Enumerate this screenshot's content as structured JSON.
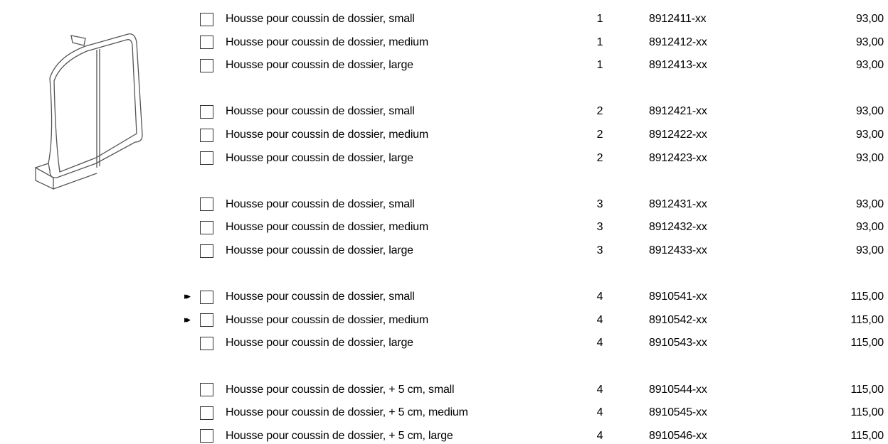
{
  "groups": [
    {
      "rows": [
        {
          "description": "Housse pour coussin de dossier, small",
          "qty": "1",
          "code": "8912411-xx",
          "price": "93,00"
        },
        {
          "description": "Housse pour coussin de dossier, medium",
          "qty": "1",
          "code": "8912412-xx",
          "price": "93,00"
        },
        {
          "description": "Housse pour coussin de dossier, large",
          "qty": "1",
          "code": "8912413-xx",
          "price": "93,00"
        }
      ]
    },
    {
      "rows": [
        {
          "description": "Housse pour coussin de dossier, small",
          "qty": "2",
          "code": "8912421-xx",
          "price": "93,00"
        },
        {
          "description": "Housse pour coussin de dossier, medium",
          "qty": "2",
          "code": "8912422-xx",
          "price": "93,00"
        },
        {
          "description": "Housse pour coussin de dossier, large",
          "qty": "2",
          "code": "8912423-xx",
          "price": "93,00"
        }
      ]
    },
    {
      "rows": [
        {
          "description": "Housse pour coussin de dossier, small",
          "qty": "3",
          "code": "8912431-xx",
          "price": "93,00"
        },
        {
          "description": "Housse pour coussin de dossier, medium",
          "qty": "3",
          "code": "8912432-xx",
          "price": "93,00"
        },
        {
          "description": "Housse pour coussin de dossier, large",
          "qty": "3",
          "code": "8912433-xx",
          "price": "93,00"
        }
      ]
    },
    {
      "rows": [
        {
          "marker": "▸▸",
          "description": "Housse pour coussin de dossier, small",
          "qty": "4",
          "code": "8910541-xx",
          "price": "115,00"
        },
        {
          "marker": "▸▸",
          "description": "Housse pour coussin de dossier, medium",
          "qty": "4",
          "code": "8910542-xx",
          "price": "115,00"
        },
        {
          "description": "Housse pour coussin de dossier, large",
          "qty": "4",
          "code": "8910543-xx",
          "price": "115,00"
        }
      ]
    },
    {
      "rows": [
        {
          "description": "Housse pour coussin de dossier, + 5 cm, small",
          "qty": "4",
          "code": "8910544-xx",
          "price": "115,00"
        },
        {
          "description": "Housse pour coussin de dossier, + 5 cm, medium",
          "qty": "4",
          "code": "8910545-xx",
          "price": "115,00"
        },
        {
          "description": "Housse pour coussin de dossier, + 5 cm, large",
          "qty": "4",
          "code": "8910546-xx",
          "price": "115,00"
        }
      ]
    }
  ]
}
